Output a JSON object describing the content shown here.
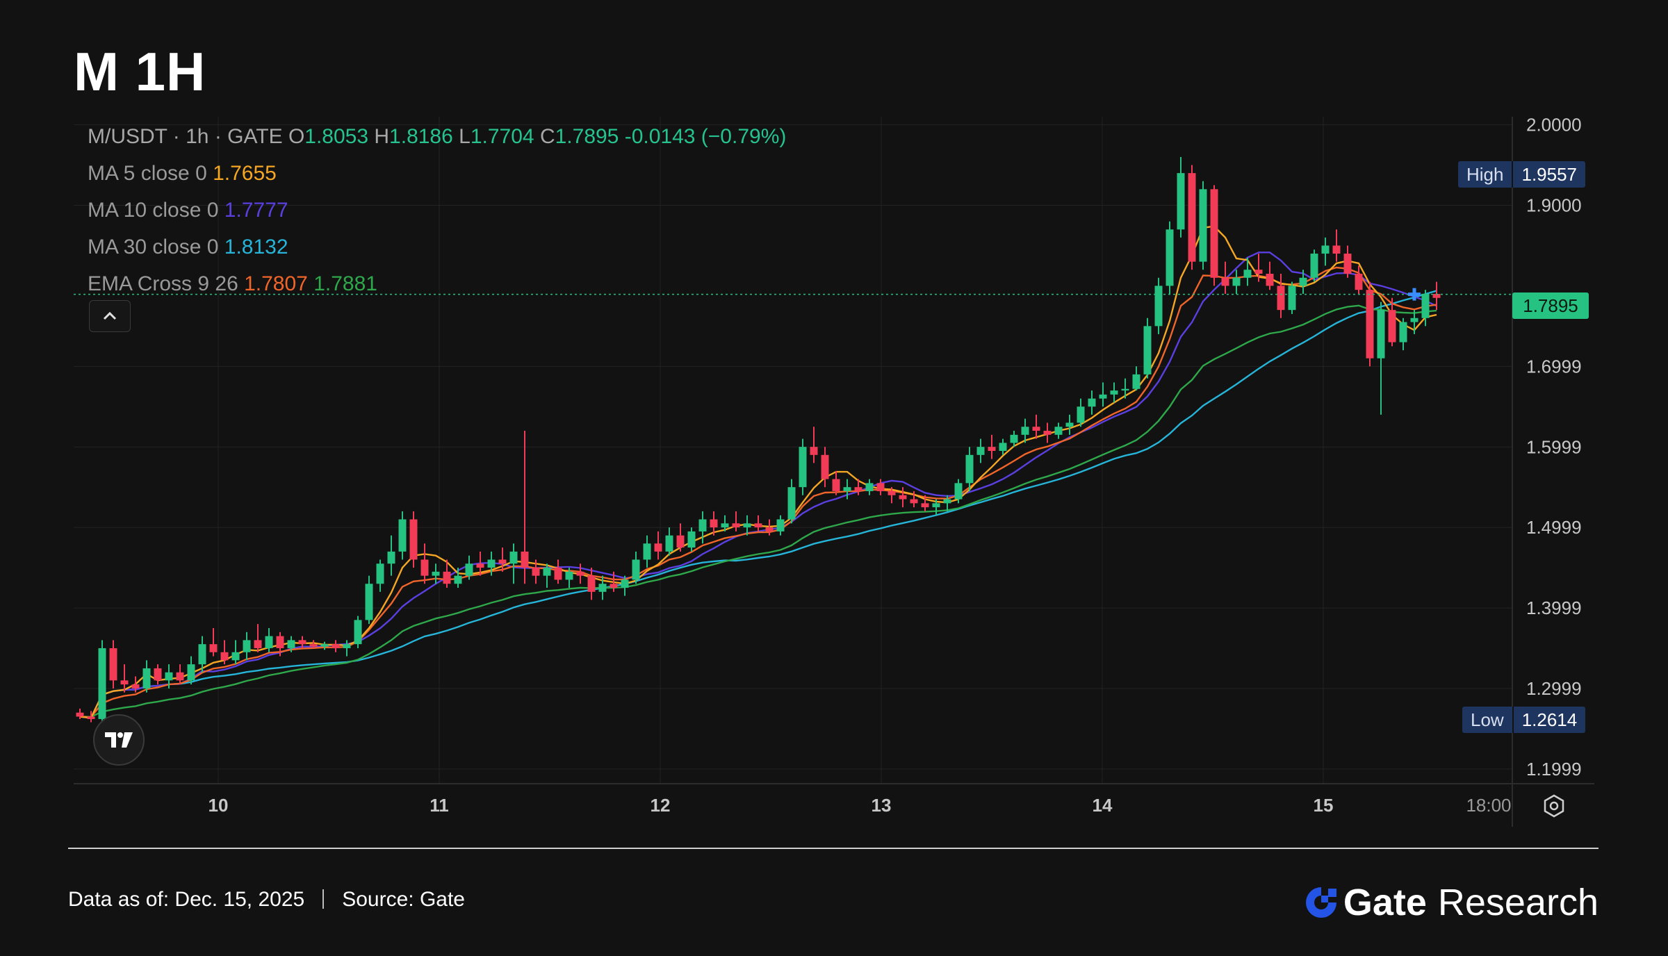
{
  "header": {
    "title": "M 1H"
  },
  "legend": {
    "symbol": "M/USDT · 1h · GATE",
    "ohlc": [
      {
        "k": "O",
        "v": "1.8053"
      },
      {
        "k": "H",
        "v": "1.8186"
      },
      {
        "k": "L",
        "v": "1.7704"
      },
      {
        "k": "C",
        "v": "1.7895"
      }
    ],
    "change": "-0.0143 (−0.79%)",
    "indicators": [
      {
        "label": "MA 5 close 0",
        "values": [
          "1.7655"
        ],
        "colors": [
          "#f5a623"
        ]
      },
      {
        "label": "MA 10 close 0",
        "values": [
          "1.7777"
        ],
        "colors": [
          "#5b3fe0"
        ]
      },
      {
        "label": "MA 30 close 0",
        "values": [
          "1.8132"
        ],
        "colors": [
          "#26b5d9"
        ]
      },
      {
        "label": "EMA Cross 9 26",
        "values": [
          "1.7807",
          "1.7881"
        ],
        "colors": [
          "#f0652a",
          "#2ea84a"
        ]
      }
    ]
  },
  "price_axis": {
    "ticks": [
      "2.0000",
      "1.9000",
      "1.6999",
      "1.5999",
      "1.4999",
      "1.3999",
      "1.2999",
      "1.1999"
    ],
    "high": {
      "label": "High",
      "value": "1.9557"
    },
    "low": {
      "label": "Low",
      "value": "1.2614"
    },
    "last": "1.7895"
  },
  "time_axis": {
    "ticks": [
      "10",
      "11",
      "12",
      "13",
      "14",
      "15",
      "18:00"
    ]
  },
  "footer": {
    "data_as_of": "Data as of: Dec. 15,  2025",
    "source": "Source:  Gate",
    "brand_gate": "Gate",
    "brand_research": "Research"
  },
  "colors": {
    "up": "#26c281",
    "down": "#f23b57",
    "bg": "#121212"
  },
  "chart_data": {
    "type": "candlestick",
    "title": "M 1H",
    "ylim": [
      1.18,
      2.01
    ],
    "x_ticks": [
      "10",
      "11",
      "12",
      "13",
      "14",
      "15",
      "18:00"
    ],
    "y_ticks": [
      1.1999,
      1.2999,
      1.3999,
      1.4999,
      1.5999,
      1.6999,
      1.9,
      2.0
    ],
    "candles": [
      [
        1.27,
        1.275,
        1.262,
        1.265
      ],
      [
        1.265,
        1.272,
        1.258,
        1.262
      ],
      [
        1.262,
        1.36,
        1.258,
        1.35
      ],
      [
        1.35,
        1.36,
        1.3,
        1.31
      ],
      [
        1.31,
        1.33,
        1.295,
        1.305
      ],
      [
        1.305,
        1.315,
        1.295,
        1.3
      ],
      [
        1.3,
        1.335,
        1.295,
        1.325
      ],
      [
        1.325,
        1.33,
        1.305,
        1.31
      ],
      [
        1.31,
        1.33,
        1.3,
        1.32
      ],
      [
        1.32,
        1.33,
        1.305,
        1.31
      ],
      [
        1.31,
        1.34,
        1.305,
        1.33
      ],
      [
        1.33,
        1.365,
        1.32,
        1.355
      ],
      [
        1.355,
        1.375,
        1.34,
        1.345
      ],
      [
        1.345,
        1.36,
        1.33,
        1.335
      ],
      [
        1.335,
        1.36,
        1.33,
        1.345
      ],
      [
        1.345,
        1.37,
        1.335,
        1.36
      ],
      [
        1.36,
        1.38,
        1.345,
        1.35
      ],
      [
        1.35,
        1.375,
        1.345,
        1.365
      ],
      [
        1.365,
        1.37,
        1.34,
        1.35
      ],
      [
        1.35,
        1.365,
        1.345,
        1.36
      ],
      [
        1.36,
        1.365,
        1.35,
        1.355
      ],
      [
        1.355,
        1.36,
        1.35,
        1.352
      ],
      [
        1.352,
        1.358,
        1.348,
        1.355
      ],
      [
        1.355,
        1.36,
        1.345,
        1.35
      ],
      [
        1.35,
        1.36,
        1.34,
        1.355
      ],
      [
        1.355,
        1.39,
        1.35,
        1.385
      ],
      [
        1.385,
        1.44,
        1.38,
        1.43
      ],
      [
        1.43,
        1.46,
        1.42,
        1.455
      ],
      [
        1.455,
        1.49,
        1.44,
        1.47
      ],
      [
        1.47,
        1.52,
        1.46,
        1.51
      ],
      [
        1.51,
        1.52,
        1.45,
        1.46
      ],
      [
        1.46,
        1.48,
        1.43,
        1.44
      ],
      [
        1.44,
        1.455,
        1.43,
        1.445
      ],
      [
        1.445,
        1.46,
        1.425,
        1.43
      ],
      [
        1.43,
        1.45,
        1.425,
        1.44
      ],
      [
        1.44,
        1.465,
        1.435,
        1.455
      ],
      [
        1.455,
        1.47,
        1.44,
        1.45
      ],
      [
        1.45,
        1.47,
        1.44,
        1.46
      ],
      [
        1.46,
        1.475,
        1.445,
        1.455
      ],
      [
        1.455,
        1.48,
        1.43,
        1.47
      ],
      [
        1.47,
        1.62,
        1.43,
        1.45
      ],
      [
        1.45,
        1.46,
        1.43,
        1.44
      ],
      [
        1.44,
        1.455,
        1.425,
        1.45
      ],
      [
        1.45,
        1.46,
        1.43,
        1.435
      ],
      [
        1.435,
        1.45,
        1.425,
        1.445
      ],
      [
        1.445,
        1.455,
        1.43,
        1.44
      ],
      [
        1.44,
        1.45,
        1.41,
        1.42
      ],
      [
        1.42,
        1.44,
        1.41,
        1.43
      ],
      [
        1.43,
        1.445,
        1.42,
        1.425
      ],
      [
        1.425,
        1.44,
        1.415,
        1.435
      ],
      [
        1.435,
        1.47,
        1.43,
        1.46
      ],
      [
        1.46,
        1.49,
        1.45,
        1.48
      ],
      [
        1.48,
        1.495,
        1.46,
        1.47
      ],
      [
        1.47,
        1.5,
        1.465,
        1.49
      ],
      [
        1.49,
        1.505,
        1.47,
        1.475
      ],
      [
        1.475,
        1.5,
        1.47,
        1.495
      ],
      [
        1.495,
        1.52,
        1.48,
        1.51
      ],
      [
        1.51,
        1.52,
        1.49,
        1.5
      ],
      [
        1.5,
        1.515,
        1.495,
        1.505
      ],
      [
        1.505,
        1.52,
        1.495,
        1.5
      ],
      [
        1.5,
        1.515,
        1.49,
        1.505
      ],
      [
        1.505,
        1.515,
        1.495,
        1.5
      ],
      [
        1.5,
        1.51,
        1.49,
        1.495
      ],
      [
        1.495,
        1.515,
        1.49,
        1.51
      ],
      [
        1.51,
        1.56,
        1.505,
        1.55
      ],
      [
        1.55,
        1.61,
        1.54,
        1.6
      ],
      [
        1.6,
        1.625,
        1.58,
        1.59
      ],
      [
        1.59,
        1.6,
        1.55,
        1.56
      ],
      [
        1.56,
        1.57,
        1.54,
        1.545
      ],
      [
        1.545,
        1.56,
        1.535,
        1.55
      ],
      [
        1.55,
        1.56,
        1.54,
        1.545
      ],
      [
        1.545,
        1.56,
        1.54,
        1.555
      ],
      [
        1.555,
        1.56,
        1.54,
        1.545
      ],
      [
        1.545,
        1.55,
        1.53,
        1.54
      ],
      [
        1.54,
        1.55,
        1.525,
        1.535
      ],
      [
        1.535,
        1.545,
        1.525,
        1.53
      ],
      [
        1.53,
        1.54,
        1.52,
        1.525
      ],
      [
        1.525,
        1.535,
        1.515,
        1.53
      ],
      [
        1.53,
        1.54,
        1.52,
        1.535
      ],
      [
        1.535,
        1.56,
        1.53,
        1.555
      ],
      [
        1.555,
        1.6,
        1.545,
        1.59
      ],
      [
        1.59,
        1.61,
        1.58,
        1.6
      ],
      [
        1.6,
        1.615,
        1.585,
        1.595
      ],
      [
        1.595,
        1.61,
        1.59,
        1.605
      ],
      [
        1.605,
        1.62,
        1.6,
        1.615
      ],
      [
        1.615,
        1.635,
        1.605,
        1.625
      ],
      [
        1.625,
        1.64,
        1.61,
        1.62
      ],
      [
        1.62,
        1.63,
        1.605,
        1.615
      ],
      [
        1.615,
        1.63,
        1.61,
        1.625
      ],
      [
        1.625,
        1.64,
        1.615,
        1.63
      ],
      [
        1.63,
        1.66,
        1.625,
        1.65
      ],
      [
        1.65,
        1.67,
        1.64,
        1.66
      ],
      [
        1.66,
        1.68,
        1.65,
        1.665
      ],
      [
        1.665,
        1.68,
        1.655,
        1.67
      ],
      [
        1.67,
        1.685,
        1.66,
        1.672
      ],
      [
        1.672,
        1.7,
        1.67,
        1.69
      ],
      [
        1.69,
        1.76,
        1.685,
        1.75
      ],
      [
        1.75,
        1.81,
        1.74,
        1.8
      ],
      [
        1.8,
        1.88,
        1.79,
        1.87
      ],
      [
        1.87,
        1.96,
        1.86,
        1.94
      ],
      [
        1.94,
        1.95,
        1.82,
        1.83
      ],
      [
        1.83,
        1.93,
        1.82,
        1.92
      ],
      [
        1.92,
        1.925,
        1.8,
        1.81
      ],
      [
        1.81,
        1.83,
        1.79,
        1.8
      ],
      [
        1.8,
        1.82,
        1.79,
        1.81
      ],
      [
        1.81,
        1.835,
        1.8,
        1.82
      ],
      [
        1.82,
        1.84,
        1.805,
        1.815
      ],
      [
        1.815,
        1.83,
        1.795,
        1.8
      ],
      [
        1.8,
        1.815,
        1.76,
        1.77
      ],
      [
        1.77,
        1.805,
        1.765,
        1.8
      ],
      [
        1.8,
        1.82,
        1.79,
        1.81
      ],
      [
        1.81,
        1.845,
        1.805,
        1.84
      ],
      [
        1.84,
        1.86,
        1.825,
        1.85
      ],
      [
        1.85,
        1.87,
        1.83,
        1.84
      ],
      [
        1.84,
        1.85,
        1.81,
        1.815
      ],
      [
        1.815,
        1.825,
        1.79,
        1.795
      ],
      [
        1.795,
        1.805,
        1.7,
        1.71
      ],
      [
        1.71,
        1.78,
        1.64,
        1.77
      ],
      [
        1.77,
        1.785,
        1.725,
        1.73
      ],
      [
        1.73,
        1.76,
        1.72,
        1.755
      ],
      [
        1.755,
        1.77,
        1.74,
        1.76
      ],
      [
        1.76,
        1.795,
        1.75,
        1.79
      ],
      [
        1.79,
        1.805,
        1.77,
        1.785
      ]
    ]
  }
}
